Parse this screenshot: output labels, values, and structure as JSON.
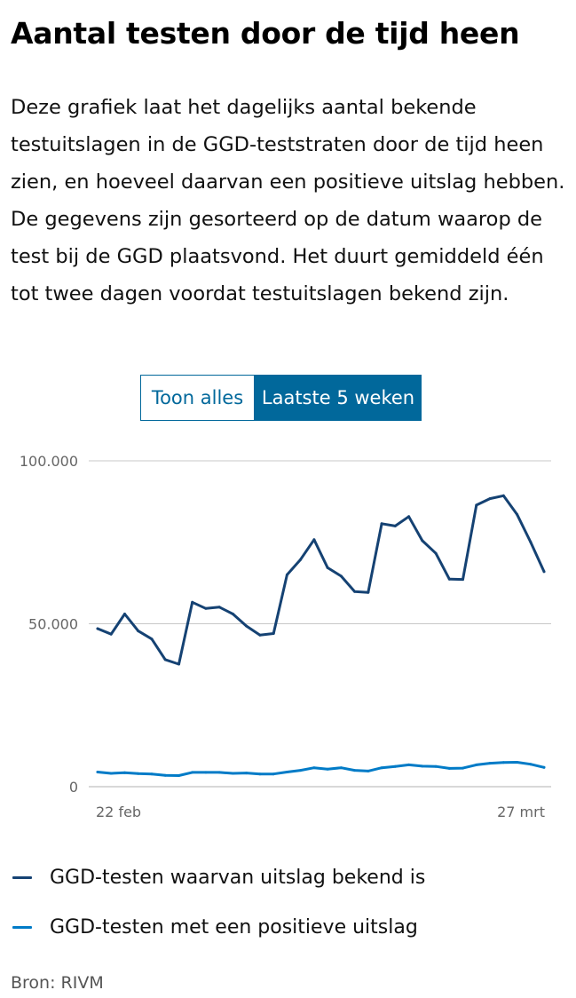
{
  "page": {
    "title": "Aantal testen door de tijd heen",
    "description": "Deze grafiek laat het dagelijks aantal bekende testuitslagen in de GGD-teststraten door de tijd heen zien, en hoeveel daarvan een positieve uitslag hebben. De gegevens zijn gesorteerd op de datum waarop de test bij de GGD plaatsvond. Het duurt gemiddeld één tot twee dagen voordat testuitslagen bekend zijn.",
    "source": "Bron: RIVM"
  },
  "toggle": {
    "show_all_label": "Toon alles",
    "last5_label": "Laatste 5 weken",
    "selected": "Laatste 5 weken"
  },
  "colors": {
    "accent": "#01689b",
    "tested_series": "#154273",
    "positive_series": "#007bc7",
    "grid": "#c8c8c8",
    "axis_text": "#666666"
  },
  "chart_data": {
    "type": "line",
    "title": "",
    "xlabel": "",
    "ylabel": "",
    "ylim": [
      0,
      100000
    ],
    "yticks": [
      {
        "value": 0,
        "label": "0"
      },
      {
        "value": 50000,
        "label": "50.000"
      },
      {
        "value": 100000,
        "label": "100.000"
      }
    ],
    "x_range": [
      "2021-02-22",
      "2021-03-27"
    ],
    "xtick_labels": [
      {
        "date": "2021-02-22",
        "label": "22 feb"
      },
      {
        "date": "2021-03-27",
        "label": "27 mrt"
      }
    ],
    "grid": true,
    "legend_position": "bottom",
    "x": [
      "2021-02-22",
      "2021-02-23",
      "2021-02-24",
      "2021-02-25",
      "2021-02-26",
      "2021-02-27",
      "2021-02-28",
      "2021-03-01",
      "2021-03-02",
      "2021-03-03",
      "2021-03-04",
      "2021-03-05",
      "2021-03-06",
      "2021-03-07",
      "2021-03-08",
      "2021-03-09",
      "2021-03-10",
      "2021-03-11",
      "2021-03-12",
      "2021-03-13",
      "2021-03-14",
      "2021-03-15",
      "2021-03-16",
      "2021-03-17",
      "2021-03-18",
      "2021-03-19",
      "2021-03-20",
      "2021-03-21",
      "2021-03-22",
      "2021-03-23",
      "2021-03-24",
      "2021-03-25",
      "2021-03-26",
      "2021-03-27"
    ],
    "series": [
      {
        "name": "GGD-testen waarvan uitslag bekend is",
        "values": [
          48500,
          46800,
          53000,
          47800,
          45300,
          39000,
          37600,
          56600,
          54700,
          55100,
          53000,
          49300,
          46500,
          47000,
          65000,
          69700,
          75800,
          67200,
          64600,
          59900,
          59600,
          80700,
          80000,
          82900,
          75500,
          71600,
          63700,
          63600,
          86400,
          88400,
          89300,
          83600,
          75100,
          66000
        ]
      },
      {
        "name": "GGD-testen met een positieve uitslag",
        "values": [
          4500,
          4100,
          4300,
          4000,
          3900,
          3500,
          3400,
          4400,
          4400,
          4400,
          4100,
          4200,
          3900,
          3900,
          4500,
          5000,
          5800,
          5400,
          5800,
          5000,
          4800,
          5800,
          6200,
          6700,
          6300,
          6200,
          5600,
          5700,
          6700,
          7200,
          7400,
          7500,
          6900,
          5900
        ]
      }
    ]
  }
}
